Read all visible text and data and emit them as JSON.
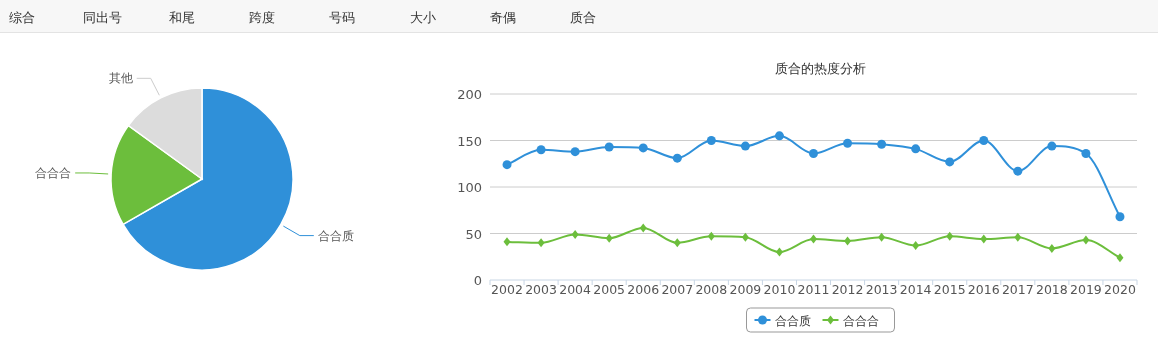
{
  "chart_data": [
    {
      "type": "other",
      "annotations": [
        "综合",
        "同出号",
        "和尾",
        "跨度",
        "号码",
        "大小",
        "奇偶",
        "质合"
      ]
    },
    {
      "type": "pie",
      "categories": [
        "合合质",
        "合合合",
        "其他"
      ],
      "values": [
        66.7,
        18.3,
        15.0
      ],
      "colors": [
        "#2f90d9",
        "#6cbe3c",
        "#dcdcdc"
      ]
    },
    {
      "type": "line",
      "title": "质合的热度分析",
      "categories": [
        "2002",
        "2003",
        "2004",
        "2005",
        "2006",
        "2007",
        "2008",
        "2009",
        "2010",
        "2011",
        "2012",
        "2013",
        "2014",
        "2015",
        "2016",
        "2017",
        "2018",
        "2019",
        "2020"
      ],
      "series": [
        {
          "name": "合合质",
          "color": "#2f90d9",
          "marker": "circle",
          "values": [
            124,
            140,
            138,
            143,
            142,
            131,
            150,
            144,
            155,
            136,
            147,
            146,
            141,
            127,
            150,
            117,
            144,
            136,
            68
          ]
        },
        {
          "name": "合合合",
          "color": "#6cbe3c",
          "marker": "diamond",
          "values": [
            41,
            40,
            49,
            45,
            56,
            40,
            47,
            46,
            30,
            44,
            42,
            46,
            37,
            47,
            44,
            46,
            34,
            43,
            24
          ]
        }
      ],
      "ylim": [
        0,
        200
      ],
      "yticks": [
        0,
        50,
        100,
        150,
        200
      ],
      "grid": "y",
      "legend": "bottom"
    }
  ]
}
